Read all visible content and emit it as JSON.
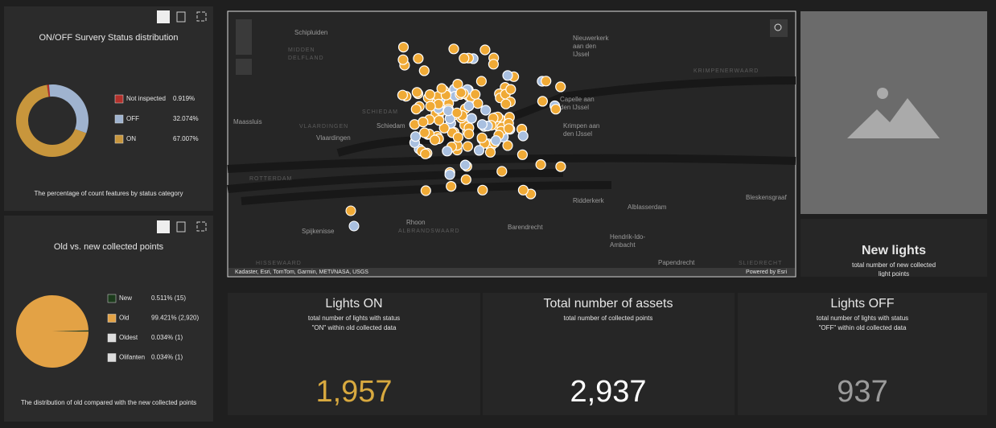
{
  "chart_data": [
    {
      "type": "donut",
      "title": "ON/OFF Survery Status distribution",
      "categories": [
        "Not inspected",
        "OFF",
        "ON"
      ],
      "values": [
        0.919,
        32.074,
        67.007
      ],
      "value_labels": [
        "0.919%",
        "32.074%",
        "67.007%"
      ],
      "colors": [
        "#b3302b",
        "#9fb3cf",
        "#c8963c"
      ],
      "caption": "The percentage of count features by status category"
    },
    {
      "type": "pie",
      "title": "Old vs. new collected points",
      "categories": [
        "New",
        "Old",
        "Oldest",
        "Olifanten"
      ],
      "values": [
        0.511,
        99.421,
        0.034,
        0.034
      ],
      "value_labels": [
        "0.511% (15)",
        "99.421% (2,920)",
        "0.034% (1)",
        "0.034% (1)"
      ],
      "colors": [
        "#1c3b1c",
        "#e3a245",
        "#dddddd",
        "#dddddd"
      ],
      "caption": "The distribution of old compared with the new collected points"
    }
  ],
  "map": {
    "places": [
      [
        "Schipluiden"
      ],
      [
        "MIDDEN",
        "DELFLAND"
      ],
      [
        "Maassluis"
      ],
      [
        "VLAARDINGEN"
      ],
      [
        "Vlaardingen"
      ],
      [
        "SCHIEDAM"
      ],
      [
        "Schiedam"
      ],
      [
        "Rotterdam"
      ],
      [
        "ROTTERDAM"
      ],
      [
        "Spijkenisse"
      ],
      [
        "Rhoon"
      ],
      [
        "ALBRANDSWAARD"
      ],
      [
        "Barendrecht"
      ],
      [
        "Ridderkerk"
      ],
      [
        "Alblasserdam"
      ],
      [
        "Hendrik-Ido-",
        "Ambacht"
      ],
      [
        "Papendrecht"
      ],
      [
        "SLIEDRECHT"
      ],
      [
        "Bleskensgraaf"
      ],
      [
        "Krimpen aan",
        "den IJssel"
      ],
      [
        "Capelle aan",
        "den IJssel"
      ],
      [
        "Nieuwerkerk",
        "aan den",
        "IJssel"
      ],
      [
        "KRIMPENERWAARD"
      ],
      [
        "HISSEWAARD"
      ]
    ],
    "attribution": "Kadaster, Esri, TomTom, Garmin, METI/NASA, USGS",
    "powered": "Powered by Esri"
  },
  "new_lights": {
    "title": "New lights",
    "description": [
      "total number of new collected",
      "light points"
    ]
  },
  "indicators": [
    {
      "title": "Lights ON",
      "description": [
        "total number of lights with status",
        "\"ON\" within old collected data"
      ],
      "value": "1,957",
      "color": "#d8a93f"
    },
    {
      "title": "Total number of assets",
      "description": [
        "total number of collected points"
      ],
      "value": "2,937",
      "color": "#ffffff"
    },
    {
      "title": "Lights OFF",
      "description": [
        "total number of lights with status",
        "\"OFF\" within old collected data"
      ],
      "value": "937",
      "color": "#9b9b9b"
    }
  ]
}
